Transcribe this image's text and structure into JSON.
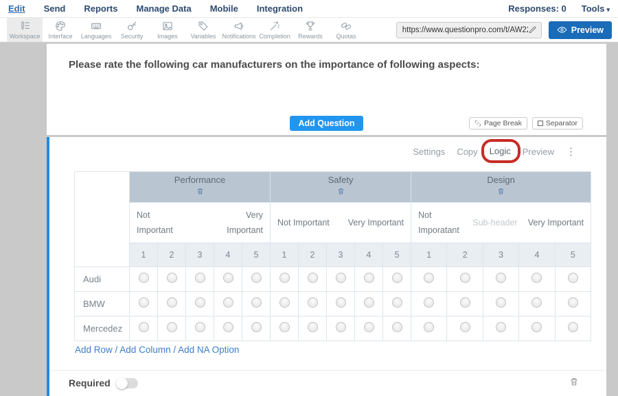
{
  "colors": {
    "accent_blue": "#2196ef",
    "preview_blue": "#1a6cb8",
    "nav_text": "#2c4a6e",
    "link_blue": "#3d7cc9",
    "group_header_bg": "#b9c5d1",
    "scale_row_bg": "#e9eef3",
    "annotation_red": "#c72b25",
    "selected_block_border": "#1f8be6"
  },
  "nav": {
    "items": [
      {
        "label": "Edit",
        "active": true
      },
      {
        "label": "Send"
      },
      {
        "label": "Reports"
      },
      {
        "label": "Manage Data"
      },
      {
        "label": "Mobile"
      },
      {
        "label": "Integration"
      }
    ],
    "responses_label": "Responses: 0",
    "tools_label": "Tools"
  },
  "toolbar": {
    "items": [
      {
        "label": "Workspace",
        "icon": "workspace-icon",
        "active": true
      },
      {
        "label": "Interface",
        "icon": "interface-icon"
      },
      {
        "label": "Languages",
        "icon": "languages-icon"
      },
      {
        "label": "Security",
        "icon": "security-icon"
      },
      {
        "label": "Images",
        "icon": "images-icon"
      },
      {
        "label": "Variables",
        "icon": "variables-icon"
      },
      {
        "label": "Notifications",
        "icon": "notifications-icon"
      },
      {
        "label": "Completion",
        "icon": "completion-icon"
      },
      {
        "label": "Rewards",
        "icon": "rewards-icon"
      },
      {
        "label": "Quotas",
        "icon": "quotas-icon"
      }
    ],
    "url_value": "https://www.questionpro.com/t/AW22ZcC",
    "preview_label": "Preview"
  },
  "question_panel": {
    "title": "Please rate the following car manufacturers on the importance of following aspects:",
    "add_question_label": "Add Question",
    "page_break_label": "Page Break",
    "separator_label": "Separator"
  },
  "editor_block": {
    "actions": [
      {
        "label": "Settings"
      },
      {
        "label": "Copy"
      },
      {
        "label": "Logic",
        "annotated": true
      },
      {
        "label": "Preview"
      }
    ]
  },
  "matrix": {
    "groups": [
      {
        "label": "Performance",
        "sub_left": "Not Important",
        "sub_mid": "",
        "sub_right": "Very Important"
      },
      {
        "label": "Safety",
        "sub_left": "Not Important",
        "sub_mid": "",
        "sub_right": "Very Important"
      },
      {
        "label": "Design",
        "sub_left": "Not Imporatant",
        "sub_mid": "Sub-header",
        "sub_right": "Very Important"
      }
    ],
    "scale": [
      "1",
      "2",
      "3",
      "4",
      "5"
    ],
    "rows": [
      "Audi",
      "BMW",
      "Mercedez"
    ]
  },
  "matrix_footer": {
    "links": [
      "Add Row",
      "Add Column",
      "Add NA Option"
    ],
    "separator": " / "
  },
  "block_footer": {
    "required_label": "Required",
    "required_on": false
  }
}
